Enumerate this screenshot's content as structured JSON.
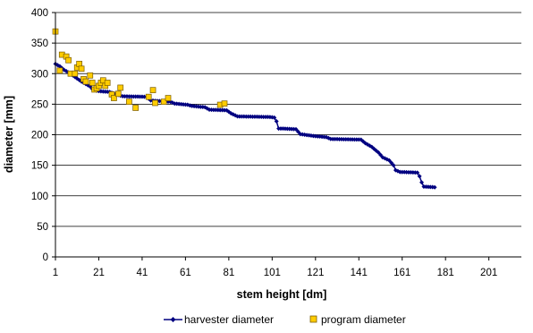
{
  "chart_data": {
    "type": "scatter",
    "title": "",
    "xlabel": "stem height [dm]",
    "ylabel": "diameter [mm]",
    "xlim": [
      1,
      216
    ],
    "ylim": [
      0,
      400
    ],
    "xticks": [
      1,
      21,
      41,
      61,
      81,
      101,
      121,
      141,
      161,
      181,
      201
    ],
    "yticks": [
      0,
      50,
      100,
      150,
      200,
      250,
      300,
      350,
      400
    ],
    "grid": "horizontal",
    "legend_position": "bottom",
    "series": [
      {
        "name": "harvester diameter",
        "color": "#000080",
        "marker": "diamond",
        "line": true,
        "points": [
          [
            1,
            316
          ],
          [
            3,
            312
          ],
          [
            5,
            306
          ],
          [
            7,
            302
          ],
          [
            9,
            297
          ],
          [
            11,
            292
          ],
          [
            13,
            287
          ],
          [
            15,
            283
          ],
          [
            17,
            279
          ],
          [
            18,
            275
          ],
          [
            20,
            272
          ],
          [
            22,
            271
          ],
          [
            26,
            270
          ],
          [
            30,
            265
          ],
          [
            32,
            263
          ],
          [
            43,
            262
          ],
          [
            45,
            256
          ],
          [
            54,
            254
          ],
          [
            56,
            251
          ],
          [
            62,
            249
          ],
          [
            64,
            247
          ],
          [
            70,
            245
          ],
          [
            72,
            241
          ],
          [
            80,
            240
          ],
          [
            82,
            235
          ],
          [
            85,
            230
          ],
          [
            100,
            229
          ],
          [
            102,
            228
          ],
          [
            103,
            222
          ],
          [
            104,
            210
          ],
          [
            106,
            210
          ],
          [
            112,
            209
          ],
          [
            114,
            201
          ],
          [
            118,
            199
          ],
          [
            120,
            198
          ],
          [
            126,
            196
          ],
          [
            128,
            193
          ],
          [
            142,
            192
          ],
          [
            144,
            186
          ],
          [
            147,
            180
          ],
          [
            150,
            171
          ],
          [
            152,
            163
          ],
          [
            155,
            158
          ],
          [
            157,
            150
          ],
          [
            158,
            142
          ],
          [
            160,
            139
          ],
          [
            168,
            138
          ],
          [
            169,
            132
          ],
          [
            170,
            122
          ],
          [
            171,
            115
          ],
          [
            176,
            114
          ]
        ]
      },
      {
        "name": "program diameter",
        "color": "#FFCC00",
        "marker": "square",
        "line": false,
        "points": [
          [
            1,
            369
          ],
          [
            3,
            305
          ],
          [
            4,
            331
          ],
          [
            6,
            328
          ],
          [
            7,
            322
          ],
          [
            8,
            300
          ],
          [
            10,
            300
          ],
          [
            11,
            310
          ],
          [
            12,
            316
          ],
          [
            13,
            308
          ],
          [
            14,
            291
          ],
          [
            15,
            287
          ],
          [
            17,
            297
          ],
          [
            18,
            285
          ],
          [
            19,
            274
          ],
          [
            20,
            276
          ],
          [
            21,
            280
          ],
          [
            22,
            285
          ],
          [
            23,
            289
          ],
          [
            24,
            280
          ],
          [
            25,
            285
          ],
          [
            27,
            266
          ],
          [
            28,
            260
          ],
          [
            30,
            267
          ],
          [
            31,
            277
          ],
          [
            35,
            254
          ],
          [
            38,
            244
          ],
          [
            44,
            262
          ],
          [
            46,
            273
          ],
          [
            47,
            252
          ],
          [
            51,
            254
          ],
          [
            53,
            260
          ],
          [
            77,
            249
          ],
          [
            79,
            251
          ]
        ]
      }
    ]
  }
}
